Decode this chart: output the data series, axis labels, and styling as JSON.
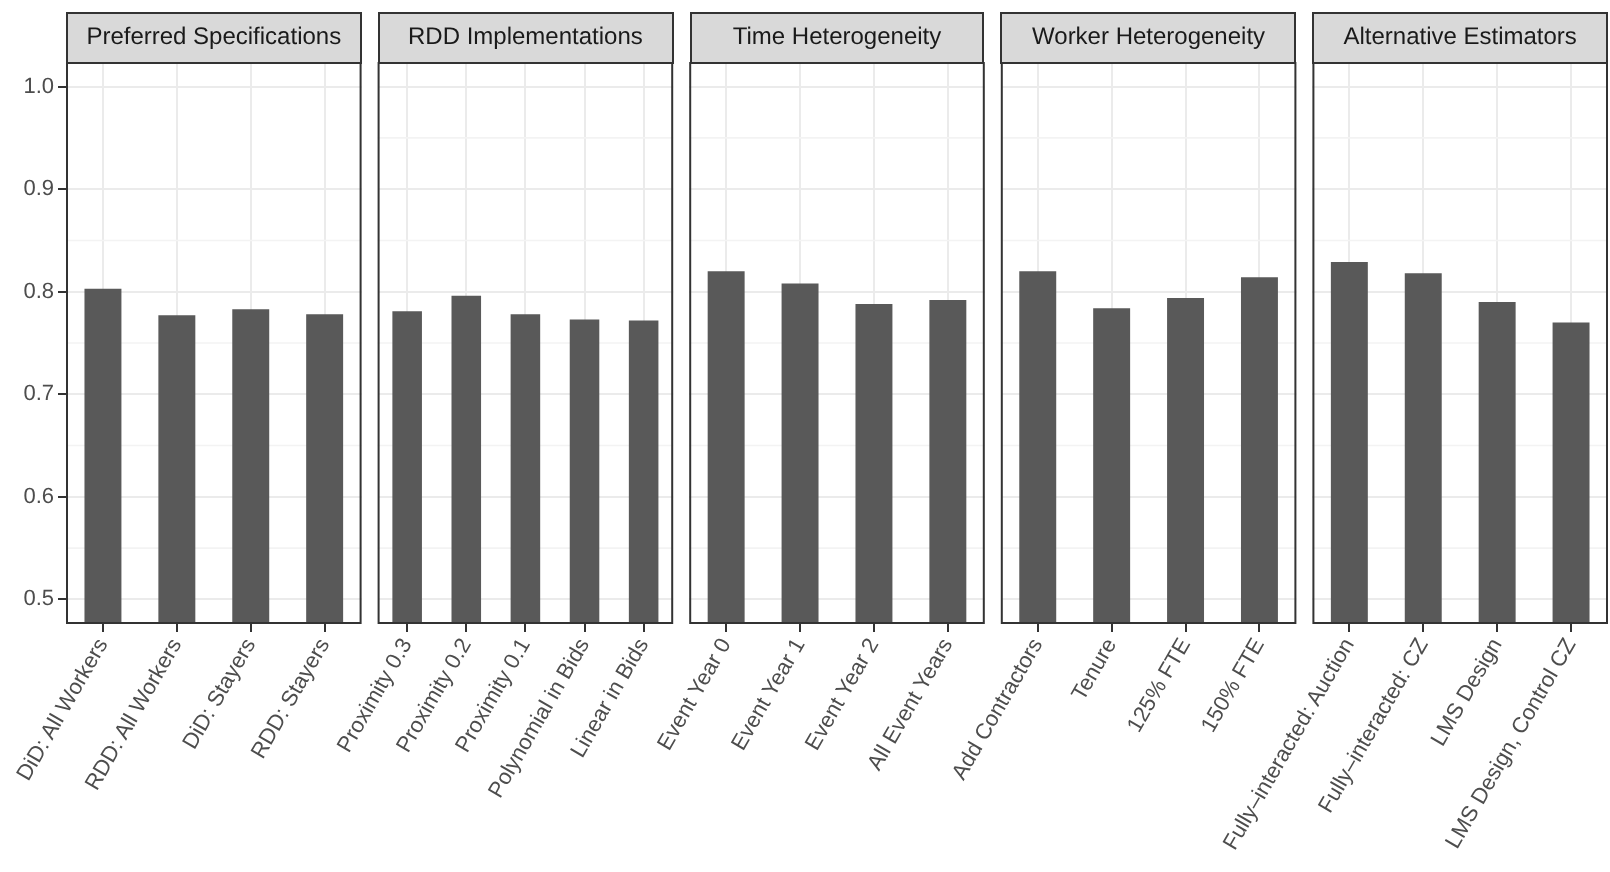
{
  "chart_data": [
    {
      "type": "bar",
      "title": "Preferred Specifications",
      "categories": [
        "DiD: All Workers",
        "RDD: All Workers",
        "DiD: Stayers",
        "RDD: Stayers"
      ],
      "values": [
        0.803,
        0.777,
        0.783,
        0.778
      ],
      "color": "#595959",
      "ylim": [
        0.476,
        1.024
      ],
      "yticks": [
        0.5,
        0.6,
        0.7,
        0.8,
        0.9,
        {
          "value": 1,
          "label": "1.0"
        }
      ],
      "grid": true
    },
    {
      "type": "bar",
      "title": "RDD Implementations",
      "categories": [
        "Proximity 0.3",
        "Proximity 0.2",
        "Proximity 0.1",
        "Polynomial in Bids",
        "Linear in Bids"
      ],
      "values": [
        0.781,
        0.796,
        0.778,
        0.773,
        0.772
      ],
      "color": "#595959",
      "ylim": [
        0.476,
        1.024
      ],
      "yticks": [
        0.5,
        0.6,
        0.7,
        0.8,
        0.9,
        1.0
      ],
      "grid": true,
      "tick_labels": "x"
    },
    {
      "type": "bar",
      "title": "Time Heterogeneity",
      "categories": [
        "Event Year 0",
        "Event Year 1",
        "Event Year 2",
        "All Event Years"
      ],
      "values": [
        0.82,
        0.808,
        0.788,
        0.792
      ],
      "color": "#595959",
      "ylim": [
        0.476,
        1.024
      ],
      "yticks": [
        0.5,
        0.6,
        0.7,
        0.8,
        0.9,
        1.0
      ],
      "grid": true,
      "tick_labels": "x"
    },
    {
      "type": "bar",
      "title": "Worker Heterogeneity",
      "categories": [
        "Add Contractors",
        "Tenure",
        "125% FTE",
        "150% FTE"
      ],
      "values": [
        0.82,
        0.784,
        0.794,
        0.814
      ],
      "color": "#595959",
      "ylim": [
        0.476,
        1.024
      ],
      "yticks": [
        0.5,
        0.6,
        0.7,
        0.8,
        0.9,
        1.0
      ],
      "grid": true,
      "tick_labels": "x"
    },
    {
      "type": "bar",
      "title": "Alternative Estimators",
      "categories": [
        "Fully–interacted: Auction",
        "Fully–interacted: CZ",
        "LMS Design",
        "LMS Design, Control CZ"
      ],
      "values": [
        0.829,
        0.818,
        0.79,
        0.77
      ],
      "color": "#595959",
      "ylim": [
        0.476,
        1.024
      ],
      "yticks": [
        0.5,
        0.6,
        0.7,
        0.8,
        0.9,
        1.0
      ],
      "grid": true,
      "tick_labels": "x"
    }
  ]
}
